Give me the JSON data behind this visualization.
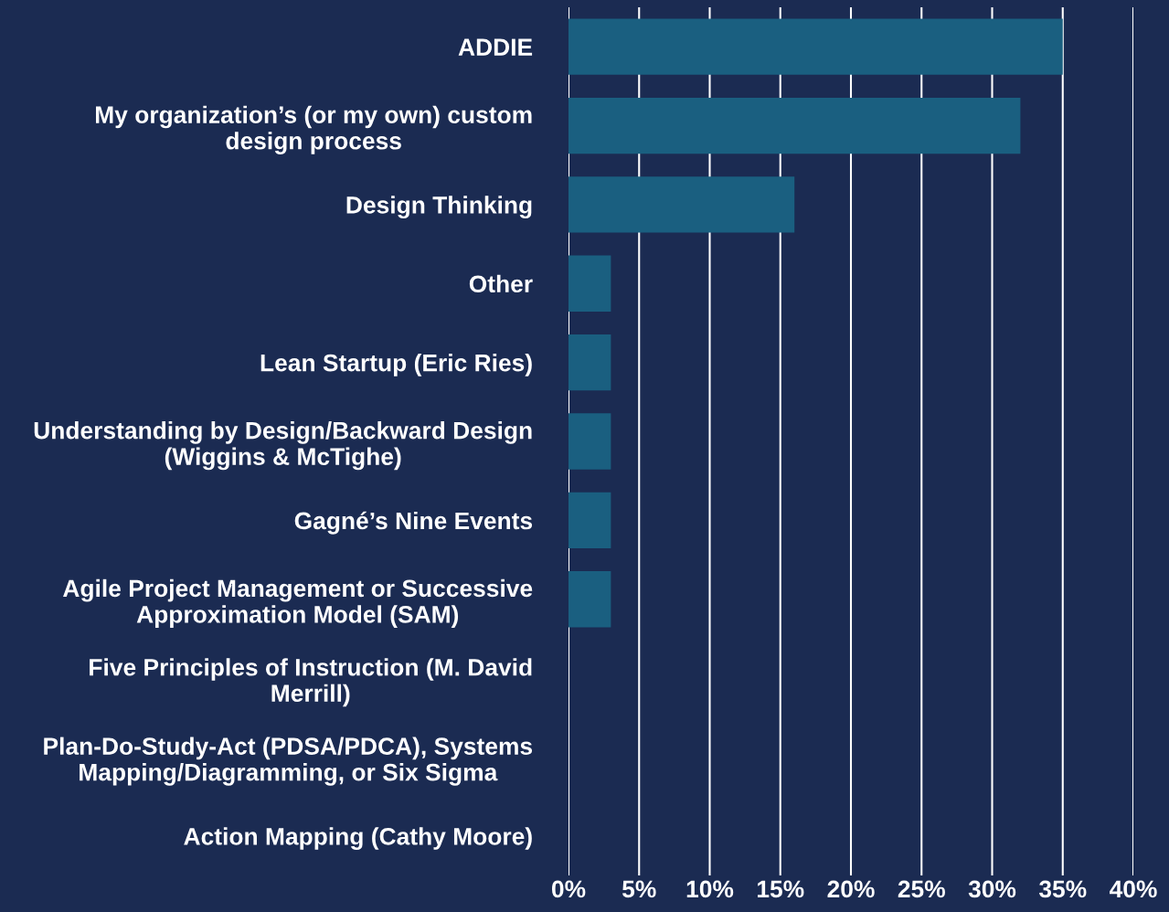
{
  "chart_data": {
    "type": "bar",
    "orientation": "horizontal",
    "categories": [
      "ADDIE",
      "My organization’s (or my own) custom\ndesign process",
      "Design Thinking",
      "Other",
      "Lean Startup (Eric Ries)",
      "Understanding by Design/Backward Design\n(Wiggins & McTighe)",
      "Gagné’s Nine Events",
      "Agile Project Management or Successive\nApproximation Model (SAM)",
      "Five Principles of Instruction (M. David\nMerrill)",
      "Plan-Do-Study-Act (PDSA/PDCA), Systems\nMapping/Diagramming, or Six Sigma",
      "Action Mapping (Cathy Moore)"
    ],
    "values": [
      35,
      32,
      16,
      3,
      3,
      3,
      3,
      3,
      0,
      0,
      0
    ],
    "color": "#1a5f80",
    "xlim": [
      0,
      40
    ],
    "xticks": [
      {
        "value": 0,
        "label": "0%"
      },
      {
        "value": 5,
        "label": "5%"
      },
      {
        "value": 10,
        "label": "10%"
      },
      {
        "value": 15,
        "label": "15%"
      },
      {
        "value": 20,
        "label": "20%"
      },
      {
        "value": 25,
        "label": "25%"
      },
      {
        "value": 30,
        "label": "30%"
      },
      {
        "value": 35,
        "label": "35%"
      },
      {
        "value": 40,
        "label": "40%"
      }
    ],
    "grid": "x"
  }
}
